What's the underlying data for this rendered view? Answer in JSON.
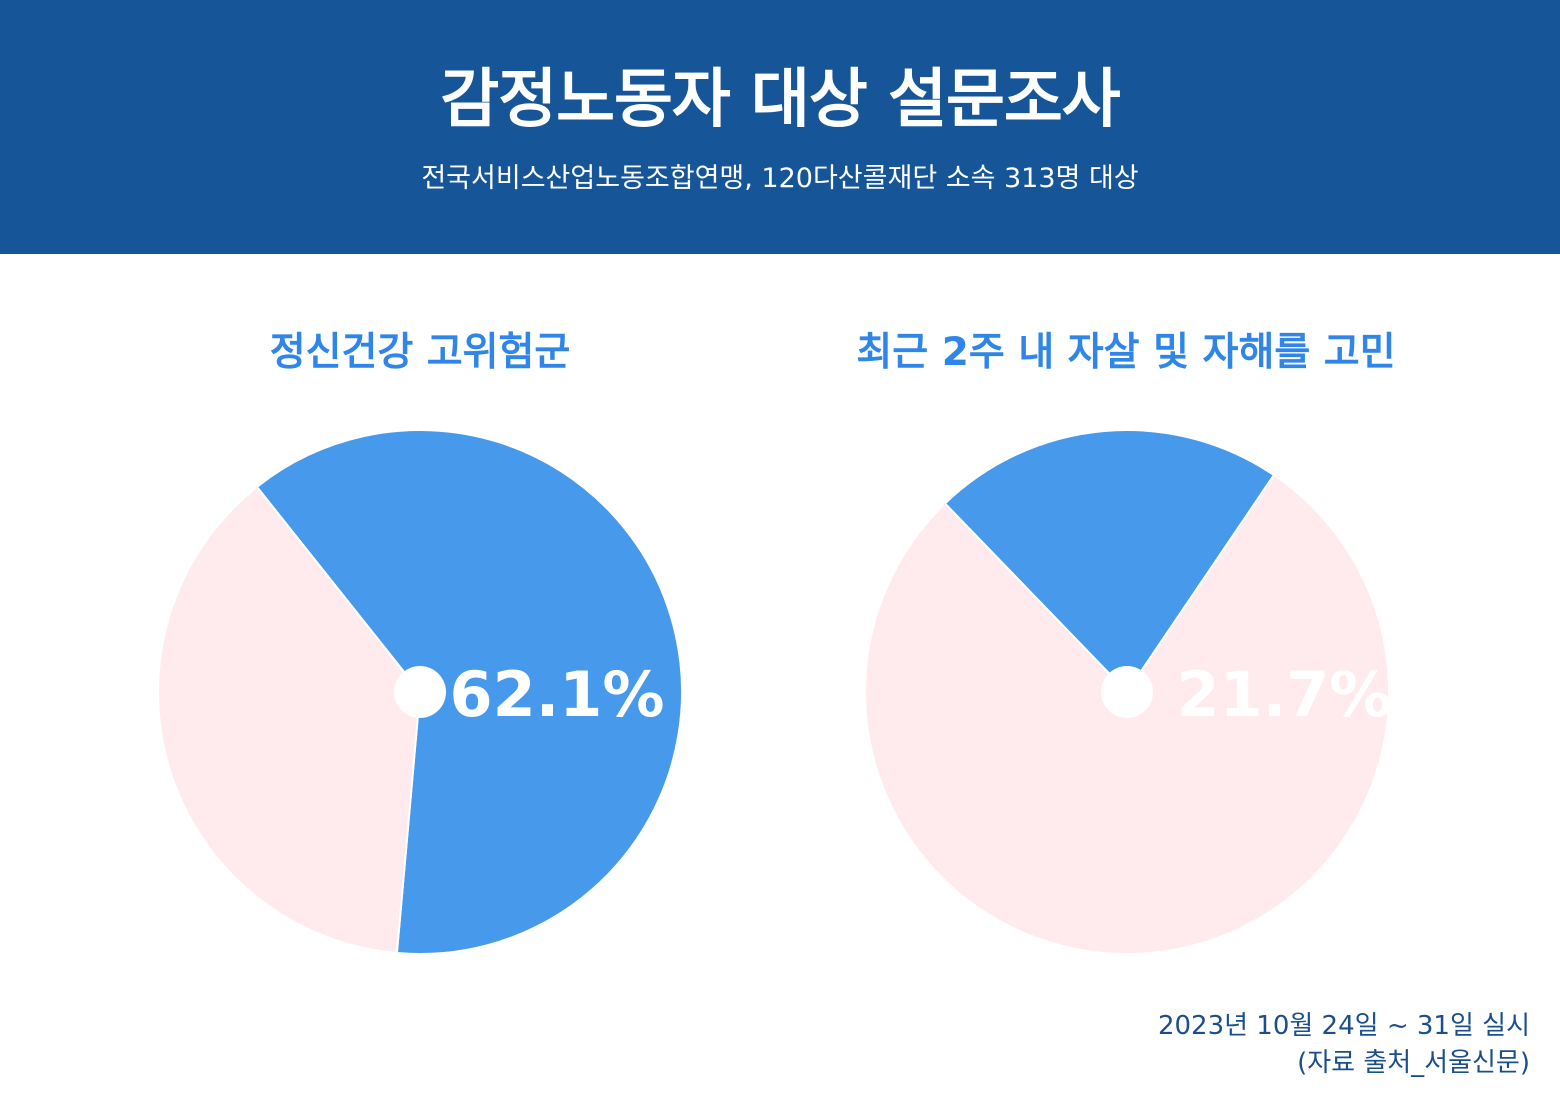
{
  "header": {
    "title": "감정노동자 대상 설문조사",
    "subtitle": "전국서비스산업노동조합연맹, 120다산콜재단 소속 313명 대상"
  },
  "chart_data": [
    {
      "type": "pie",
      "title": "정신건강 고위험군",
      "value": 62.1,
      "label": "62.1%",
      "slices": [
        {
          "value": 62.1,
          "color": "#4799ec"
        },
        {
          "value": 37.9,
          "color": "#ffebee"
        }
      ]
    },
    {
      "type": "pie",
      "title": "최근 2주 내 자살 및 자해를 고민",
      "value": 21.7,
      "label": "21.7%",
      "slices": [
        {
          "value": 21.7,
          "color": "#4799ec"
        },
        {
          "value": 78.3,
          "color": "#ffebee"
        }
      ]
    }
  ],
  "footer": {
    "date": "2023년 10월 24일 ~ 31일 실시",
    "source": "(자료 출처_서울신문)"
  },
  "colors": {
    "header_bg": "#155598",
    "accent": "#4799ec",
    "remainder": "#ffebee",
    "chart_title": "#2f86e8"
  }
}
